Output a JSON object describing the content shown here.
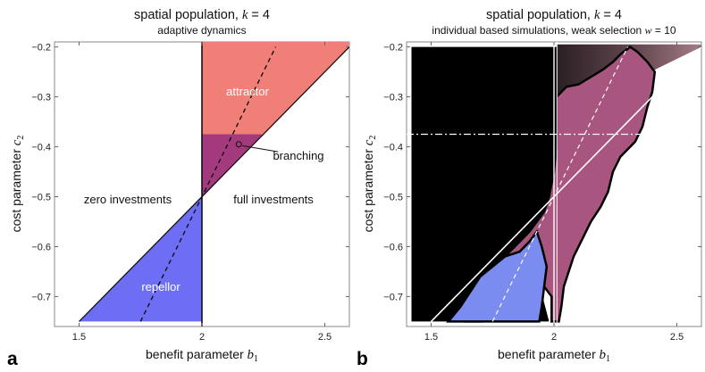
{
  "panels": [
    {
      "label": "a",
      "title_prefix": "spatial population, ",
      "title_k": "k",
      "title_k_value": " = 4",
      "subtitle": "adaptive dynamics",
      "xlabel": "benefit parameter",
      "xsym": "b",
      "xsub": "1",
      "ylabel": "cost parameter",
      "ysym": "c",
      "ysub": "2",
      "regions": {
        "attractor": "attractor",
        "branching": "branching",
        "zero": "zero investments",
        "full": "full investments",
        "repellor": "repellor"
      }
    },
    {
      "label": "b",
      "title_prefix": "spatial population, ",
      "title_k": "k",
      "title_k_value": " = 4",
      "subtitle_prefix": "individual based simulations, weak selection ",
      "subtitle_w": "w",
      "subtitle_w_value": " = 10",
      "xlabel": "benefit parameter",
      "xsym": "b",
      "xsub": "1",
      "ylabel": "cost parameter",
      "ysym": "c",
      "ysub": "2"
    }
  ],
  "chart_data": [
    {
      "type": "area",
      "title": "spatial population, k = 4",
      "subtitle": "adaptive dynamics",
      "xlabel": "benefit parameter b1",
      "ylabel": "cost parameter c2",
      "xlim": [
        1.4,
        2.6
      ],
      "ylim": [
        -0.76,
        -0.19
      ],
      "xticks": [
        "1.5",
        "2",
        "2.5"
      ],
      "yticks": [
        "-0.7",
        "-0.6",
        "-0.5",
        "-0.4",
        "-0.3",
        "-0.2"
      ],
      "boundaries": {
        "upper_diagonal": [
          [
            2.0,
            -0.5
          ],
          [
            2.6,
            -0.2
          ]
        ],
        "lower_diagonal": [
          [
            1.5,
            -0.75
          ],
          [
            2.0,
            -0.5
          ]
        ],
        "dashed_singular_line": [
          [
            1.75,
            -0.75
          ],
          [
            2.3,
            -0.2
          ]
        ],
        "vertical_line_b1": 2.0,
        "branching_cutoff_c2": -0.375,
        "branching_marker": [
          2.15,
          -0.395
        ]
      },
      "regions": [
        {
          "name": "attractor",
          "color": "#f08077"
        },
        {
          "name": "branching",
          "color": "#a23a7d"
        },
        {
          "name": "repellor",
          "color": "#6e6ef5"
        },
        {
          "name": "zero investments",
          "color": "#ffffff"
        },
        {
          "name": "full investments",
          "color": "#ffffff"
        }
      ]
    },
    {
      "type": "heatmap",
      "title": "spatial population, k = 4",
      "subtitle": "individual based simulations, weak selection w = 10",
      "xlabel": "benefit parameter b1",
      "ylabel": "cost parameter c2",
      "xlim": [
        1.4,
        2.6
      ],
      "ylim": [
        -0.76,
        -0.19
      ],
      "xticks": [
        "1.5",
        "2",
        "2.5"
      ],
      "yticks": [
        "-0.7",
        "-0.6",
        "-0.5",
        "-0.4",
        "-0.3",
        "-0.2"
      ],
      "overlay_lines": {
        "dash_dot_c2": -0.375,
        "vertical_b1": 2.0
      },
      "colors": {
        "zero_investment": "#000000",
        "branching": "#a8567f",
        "repellor": "#7b8cf0",
        "full_investment": "#ffffff"
      }
    }
  ]
}
